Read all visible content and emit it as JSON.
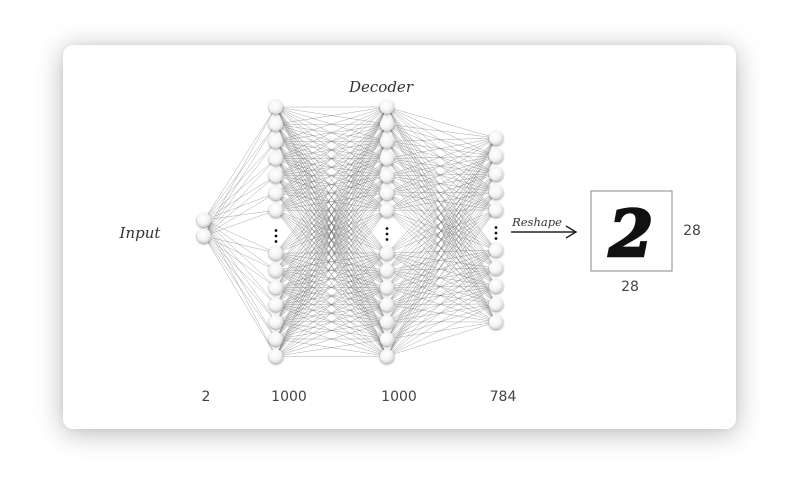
{
  "diagram": {
    "title": "Decoder",
    "input_label": "Input",
    "arrow_label": "Reshape",
    "layers": [
      {
        "size_label": "2"
      },
      {
        "size_label": "1000"
      },
      {
        "size_label": "1000"
      },
      {
        "size_label": "784"
      }
    ],
    "image_width_label": "28",
    "image_height_label": "28",
    "output_digit": "2"
  }
}
